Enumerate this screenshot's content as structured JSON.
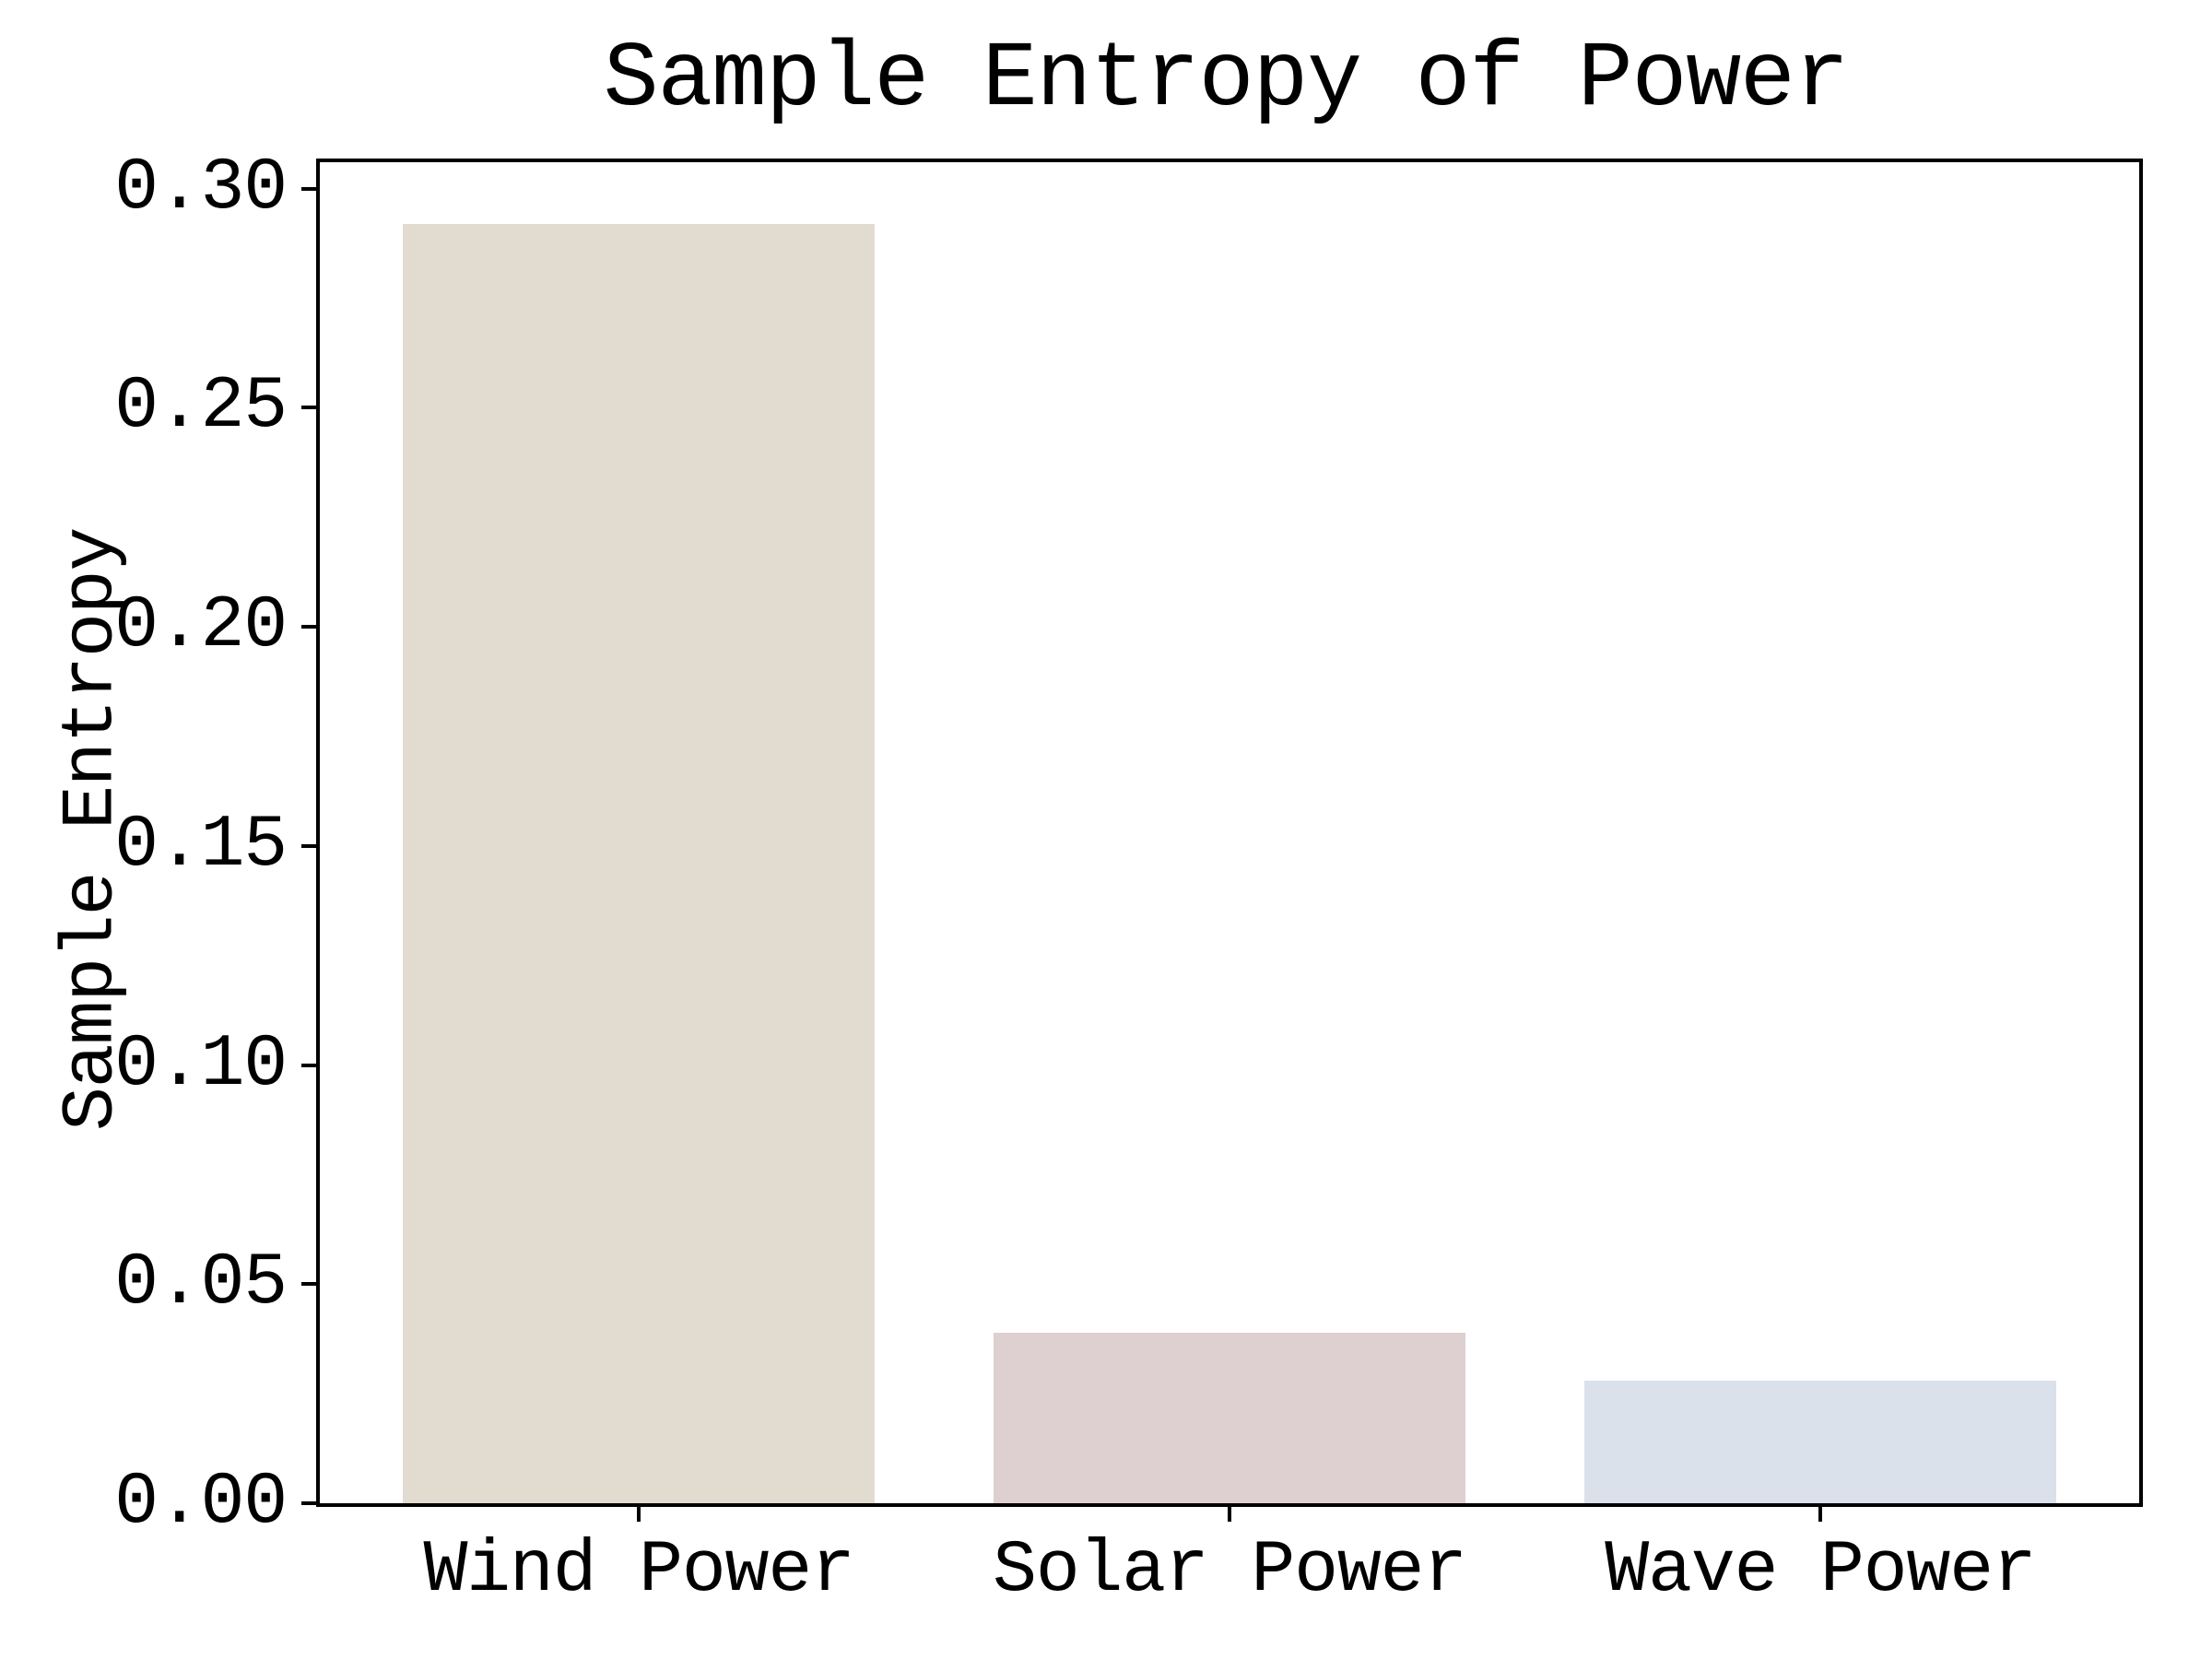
{
  "chart_data": {
    "type": "bar",
    "title": "Sample Entropy of Power",
    "ylabel": "Sample Entropy",
    "xlabel": "",
    "categories": [
      "Wind Power",
      "Solar Power",
      "Wave Power"
    ],
    "values": [
      0.292,
      0.039,
      0.028
    ],
    "bar_colors": [
      "#e2dbd0",
      "#decfd0",
      "#dae1eb"
    ],
    "ylim": [
      0,
      0.306
    ],
    "ytick_values": [
      0.0,
      0.05,
      0.1,
      0.15,
      0.2,
      0.25,
      0.3
    ],
    "ytick_labels": [
      "0.00",
      "0.05",
      "0.10",
      "0.15",
      "0.20",
      "0.25",
      "0.30"
    ],
    "grid": false,
    "legend": false,
    "axis_color": "#000000",
    "text_color": "#000000",
    "background_color": "#ffffff"
  }
}
